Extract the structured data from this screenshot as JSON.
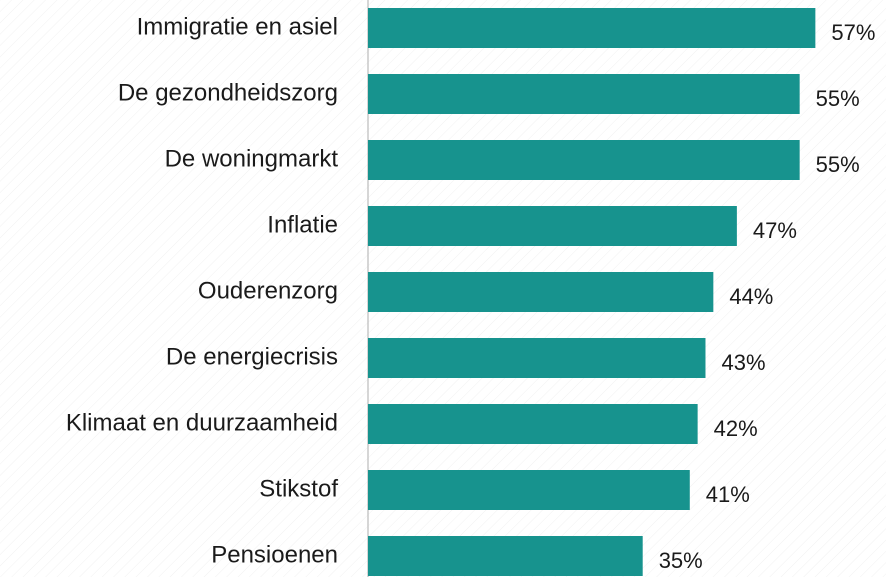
{
  "chart_data": {
    "type": "bar",
    "orientation": "horizontal",
    "categories": [
      "Immigratie en asiel",
      "De gezondheidszorg",
      "De woningmarkt",
      "Inflatie",
      "Ouderenzorg",
      "De energiecrisis",
      "Klimaat en duurzaamheid",
      "Stikstof",
      "Pensioenen"
    ],
    "values": [
      57,
      55,
      55,
      47,
      44,
      43,
      42,
      41,
      35
    ],
    "value_labels": [
      "57%",
      "55%",
      "55%",
      "47%",
      "44%",
      "43%",
      "42%",
      "41%",
      "35%"
    ],
    "color": "#17938e",
    "xlim": [
      0,
      66
    ]
  }
}
